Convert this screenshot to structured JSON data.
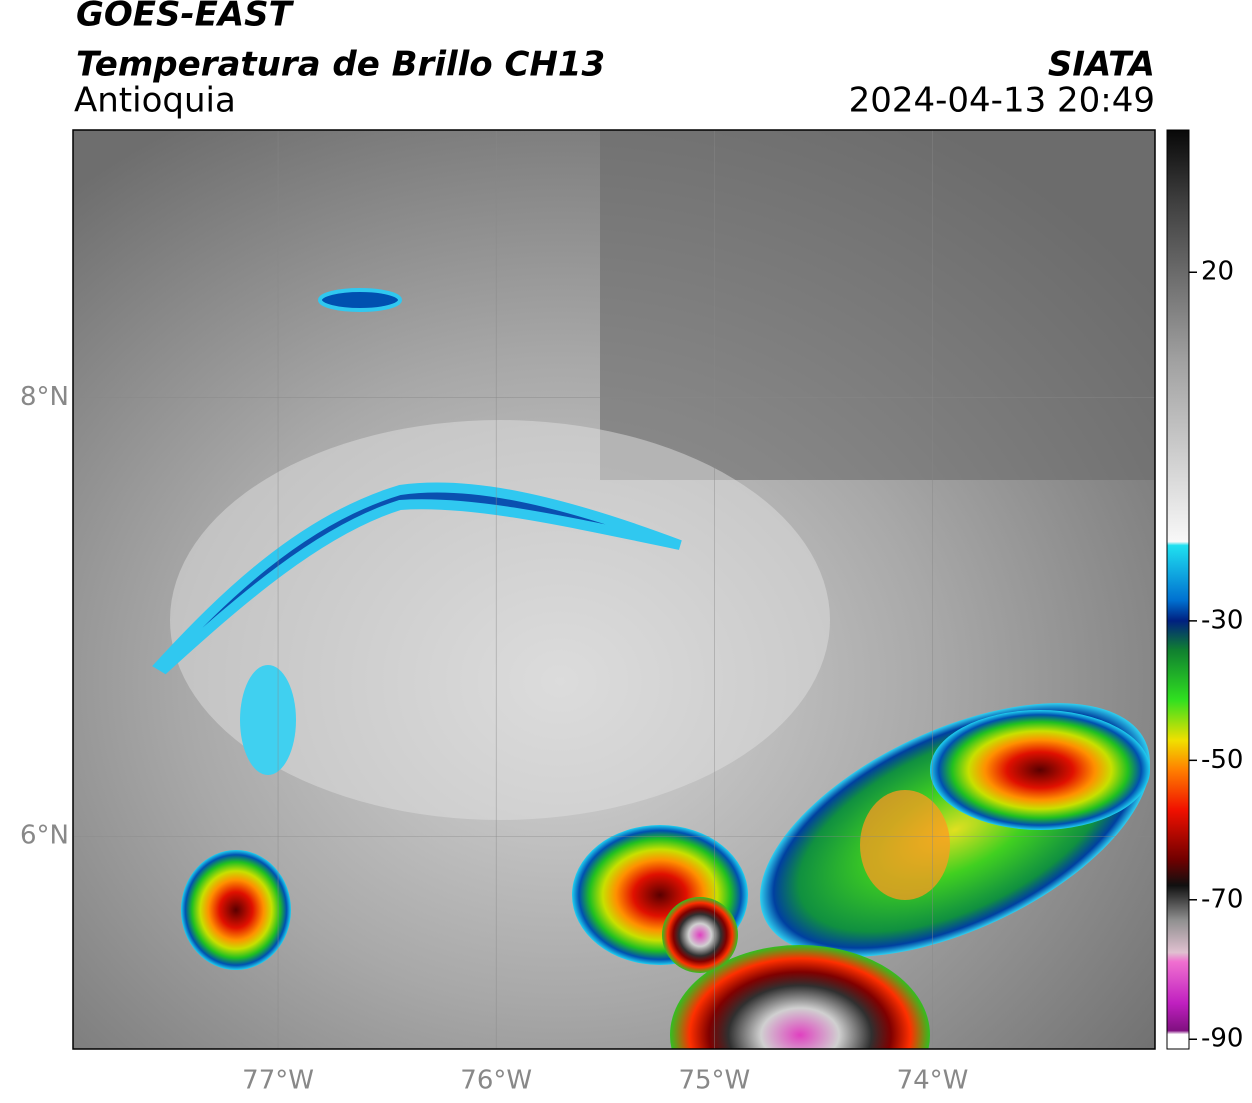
{
  "header": {
    "satellite": "GOES-EAST",
    "product": "Temperatura de Brillo CH13",
    "region": "Antioquia",
    "source": "SIATA",
    "datetime": "2024-04-13 20:49"
  },
  "map": {
    "lon_range": [
      -77.94,
      -72.98
    ],
    "lat_range": [
      5.03,
      9.22
    ],
    "lon_ticks": [
      {
        "value": -77,
        "label": "77°W"
      },
      {
        "value": -76,
        "label": "76°W"
      },
      {
        "value": -75,
        "label": "75°W"
      },
      {
        "value": -74,
        "label": "74°W"
      }
    ],
    "lat_ticks": [
      {
        "value": 8,
        "label": "8°N"
      },
      {
        "value": 6,
        "label": "6°N"
      }
    ]
  },
  "colorbar": {
    "range": [
      -91.4,
      40.4
    ],
    "ticks": [
      20,
      -30,
      -50,
      -70,
      -90
    ]
  }
}
